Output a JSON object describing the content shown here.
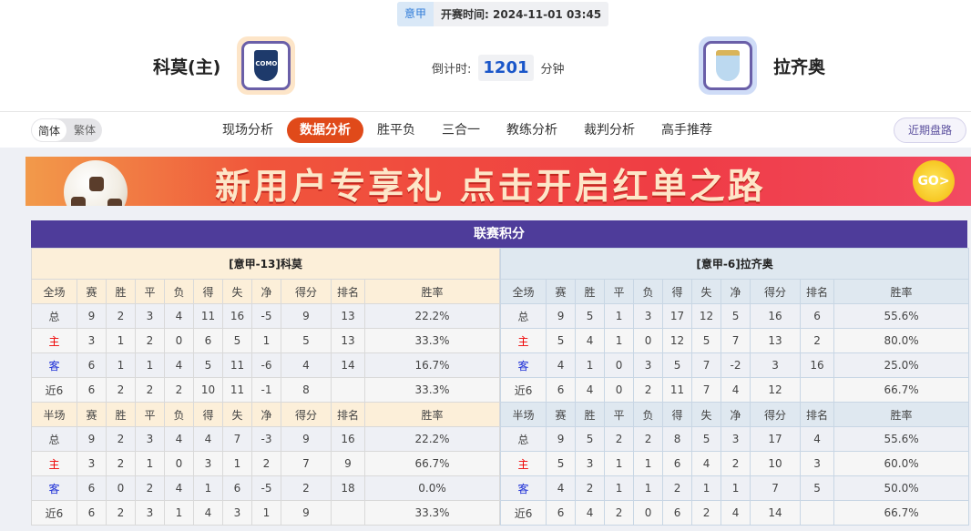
{
  "header": {
    "league": "意甲",
    "kickoff_label": "开赛时间:",
    "kickoff_time": "2024-11-01 03:45",
    "home_team": "科莫(主)",
    "away_team": "拉齐奥",
    "home_logo_text": "COMO",
    "countdown_label": "倒计时:",
    "countdown_value": "1201",
    "countdown_unit": "分钟"
  },
  "nav": {
    "lang": [
      "简体",
      "繁体"
    ],
    "tabs": [
      "现场分析",
      "数据分析",
      "胜平负",
      "三合一",
      "教练分析",
      "裁判分析",
      "高手推荐"
    ],
    "active_tab": "数据分析",
    "recent_button": "近期盘路"
  },
  "banner": {
    "text": "新用户专享礼 点击开启红单之路",
    "go": "GO>"
  },
  "standings": {
    "title": "联赛积分",
    "columns_full": [
      "全场",
      "赛",
      "胜",
      "平",
      "负",
      "得",
      "失",
      "净",
      "得分",
      "排名",
      "胜率"
    ],
    "columns_half": [
      "半场",
      "赛",
      "胜",
      "平",
      "负",
      "得",
      "失",
      "净",
      "得分",
      "排名",
      "胜率"
    ],
    "home": {
      "title": "[意甲-13]科莫",
      "full": [
        [
          "总",
          "9",
          "2",
          "3",
          "4",
          "11",
          "16",
          "-5",
          "9",
          "13",
          "22.2%"
        ],
        [
          "主",
          "3",
          "1",
          "2",
          "0",
          "6",
          "5",
          "1",
          "5",
          "13",
          "33.3%"
        ],
        [
          "客",
          "6",
          "1",
          "1",
          "4",
          "5",
          "11",
          "-6",
          "4",
          "14",
          "16.7%"
        ],
        [
          "近6",
          "6",
          "2",
          "2",
          "2",
          "10",
          "11",
          "-1",
          "8",
          "",
          "33.3%"
        ]
      ],
      "half": [
        [
          "总",
          "9",
          "2",
          "3",
          "4",
          "4",
          "7",
          "-3",
          "9",
          "16",
          "22.2%"
        ],
        [
          "主",
          "3",
          "2",
          "1",
          "0",
          "3",
          "1",
          "2",
          "7",
          "9",
          "66.7%"
        ],
        [
          "客",
          "6",
          "0",
          "2",
          "4",
          "1",
          "6",
          "-5",
          "2",
          "18",
          "0.0%"
        ],
        [
          "近6",
          "6",
          "2",
          "3",
          "1",
          "4",
          "3",
          "1",
          "9",
          "",
          "33.3%"
        ]
      ]
    },
    "away": {
      "title": "[意甲-6]拉齐奥",
      "full": [
        [
          "总",
          "9",
          "5",
          "1",
          "3",
          "17",
          "12",
          "5",
          "16",
          "6",
          "55.6%"
        ],
        [
          "主",
          "5",
          "4",
          "1",
          "0",
          "12",
          "5",
          "7",
          "13",
          "2",
          "80.0%"
        ],
        [
          "客",
          "4",
          "1",
          "0",
          "3",
          "5",
          "7",
          "-2",
          "3",
          "16",
          "25.0%"
        ],
        [
          "近6",
          "6",
          "4",
          "0",
          "2",
          "11",
          "7",
          "4",
          "12",
          "",
          "66.7%"
        ]
      ],
      "half": [
        [
          "总",
          "9",
          "5",
          "2",
          "2",
          "8",
          "5",
          "3",
          "17",
          "4",
          "55.6%"
        ],
        [
          "主",
          "5",
          "3",
          "1",
          "1",
          "6",
          "4",
          "2",
          "10",
          "3",
          "60.0%"
        ],
        [
          "客",
          "4",
          "2",
          "1",
          "1",
          "2",
          "1",
          "1",
          "7",
          "5",
          "50.0%"
        ],
        [
          "近6",
          "6",
          "4",
          "2",
          "0",
          "6",
          "2",
          "4",
          "14",
          "",
          "66.7%"
        ]
      ]
    }
  },
  "colors": {
    "accent": "#e04a1a",
    "panel_header": "#4e3c9a",
    "home_text": "#e00000",
    "away_text": "#1a2cd6"
  }
}
